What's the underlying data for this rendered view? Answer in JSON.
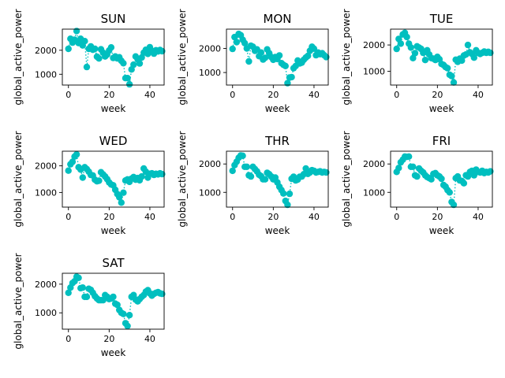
{
  "figure": {
    "marker_color": "#00BFBF"
  },
  "chart_data": [
    {
      "type": "scatter",
      "title": "SUN",
      "xlabel": "week",
      "ylabel": "global_active_power",
      "xlim": [
        -3,
        47
      ],
      "ylim": [
        550,
        2880
      ],
      "xticks": [
        0,
        20,
        40
      ],
      "yticks": [
        1000,
        2000
      ],
      "x": [
        0,
        1,
        2,
        3,
        4,
        5,
        6,
        7,
        8,
        9,
        10,
        11,
        12,
        13,
        14,
        15,
        16,
        17,
        18,
        19,
        20,
        21,
        22,
        23,
        24,
        25,
        26,
        27,
        28,
        29,
        30,
        31,
        32,
        33,
        34,
        35,
        36,
        37,
        38,
        39,
        40,
        41,
        42,
        43,
        44,
        45,
        46
      ],
      "y": [
        2060,
        2480,
        2320,
        2440,
        2800,
        2300,
        2480,
        2200,
        2380,
        1300,
        2060,
        2160,
        2020,
        2060,
        1730,
        1660,
        2040,
        1900,
        1740,
        1820,
        1990,
        2120,
        1680,
        1740,
        1660,
        1710,
        1560,
        1460,
        840,
        840,
        580,
        1200,
        1400,
        1740,
        1620,
        1450,
        1700,
        1900,
        2020,
        1850,
        2130,
        1980,
        1860,
        2000,
        1950,
        2010,
        1960
      ]
    },
    {
      "type": "scatter",
      "title": "MON",
      "xlabel": "week",
      "ylabel": "global_active_power",
      "xlim": [
        -3,
        47
      ],
      "ylim": [
        480,
        2800
      ],
      "xticks": [
        0,
        20,
        40
      ],
      "yticks": [
        1000,
        2000
      ],
      "x": [
        0,
        1,
        2,
        3,
        4,
        5,
        6,
        7,
        8,
        9,
        10,
        11,
        12,
        13,
        14,
        15,
        16,
        17,
        18,
        19,
        20,
        21,
        22,
        23,
        24,
        25,
        26,
        27,
        28,
        29,
        30,
        31,
        32,
        33,
        34,
        35,
        36,
        37,
        38,
        39,
        40,
        41,
        42,
        43,
        44,
        45,
        46
      ],
      "y": [
        1980,
        2470,
        2260,
        2600,
        2550,
        2360,
        2220,
        2000,
        1460,
        2110,
        2070,
        1900,
        1960,
        1680,
        1830,
        1540,
        1610,
        1960,
        1800,
        1640,
        1530,
        1640,
        1560,
        1710,
        1390,
        1320,
        1270,
        560,
        790,
        810,
        1180,
        1270,
        1500,
        1380,
        1410,
        1530,
        1620,
        1690,
        1900,
        2070,
        1990,
        1720,
        1830,
        1760,
        1800,
        1720,
        1640
      ]
    },
    {
      "type": "scatter",
      "title": "TUE",
      "xlabel": "week",
      "ylabel": "global_active_power",
      "xlim": [
        -3,
        47
      ],
      "ylim": [
        480,
        2600
      ],
      "xticks": [
        0,
        20,
        40
      ],
      "yticks": [
        1000,
        2000
      ],
      "x": [
        0,
        1,
        2,
        3,
        4,
        5,
        6,
        7,
        8,
        9,
        10,
        11,
        12,
        13,
        14,
        15,
        16,
        17,
        18,
        19,
        20,
        21,
        22,
        23,
        24,
        25,
        26,
        27,
        28,
        29,
        30,
        31,
        32,
        33,
        34,
        35,
        36,
        37,
        38,
        39,
        40,
        41,
        42,
        43,
        44,
        45,
        46
      ],
      "y": [
        1850,
        2230,
        2050,
        2400,
        2460,
        2300,
        2050,
        1900,
        1500,
        1690,
        1950,
        1900,
        1850,
        1700,
        1430,
        1800,
        1640,
        1500,
        1480,
        1430,
        1550,
        1460,
        1280,
        1240,
        1160,
        1120,
        870,
        820,
        580,
        1440,
        1360,
        1480,
        1410,
        1600,
        1640,
        2000,
        1720,
        1660,
        1520,
        1800,
        1700,
        1660,
        1700,
        1750,
        1700,
        1740,
        1700
      ]
    },
    {
      "type": "scatter",
      "title": "WED",
      "xlabel": "week",
      "ylabel": "global_active_power",
      "xlim": [
        -3,
        47
      ],
      "ylim": [
        450,
        2550
      ],
      "xticks": [
        0,
        20,
        40
      ],
      "yticks": [
        1000,
        2000
      ],
      "x": [
        0,
        1,
        2,
        3,
        4,
        5,
        6,
        7,
        8,
        9,
        10,
        11,
        12,
        13,
        14,
        15,
        16,
        17,
        18,
        19,
        20,
        21,
        22,
        23,
        24,
        25,
        26,
        27,
        28,
        29,
        30,
        31,
        32,
        33,
        34,
        35,
        36,
        37,
        38,
        39,
        40,
        41,
        42,
        43,
        44,
        45,
        46
      ],
      "y": [
        1820,
        2060,
        2150,
        2350,
        2430,
        1950,
        1860,
        1560,
        1950,
        1880,
        1780,
        1660,
        1640,
        1480,
        1420,
        1440,
        1760,
        1680,
        1600,
        1500,
        1380,
        1300,
        1270,
        1100,
        940,
        820,
        620,
        990,
        1450,
        1490,
        1400,
        1520,
        1580,
        1480,
        1540,
        1460,
        1600,
        1900,
        1780,
        1560,
        1700,
        1720,
        1660,
        1700,
        1680,
        1720,
        1690
      ]
    },
    {
      "type": "scatter",
      "title": "THR",
      "xlabel": "week",
      "ylabel": "global_active_power",
      "xlim": [
        -3,
        47
      ],
      "ylim": [
        480,
        2450
      ],
      "xticks": [
        0,
        20,
        40
      ],
      "yticks": [
        1000,
        2000
      ],
      "x": [
        0,
        1,
        2,
        3,
        4,
        5,
        6,
        7,
        8,
        9,
        10,
        11,
        12,
        13,
        14,
        15,
        16,
        17,
        18,
        19,
        20,
        21,
        22,
        23,
        24,
        25,
        26,
        27,
        28,
        29,
        30,
        31,
        32,
        33,
        34,
        35,
        36,
        37,
        38,
        39,
        40,
        41,
        42,
        43,
        44,
        45,
        46
      ],
      "y": [
        1760,
        1960,
        2080,
        2220,
        2300,
        2290,
        1900,
        1900,
        1600,
        1560,
        1900,
        1820,
        1740,
        1620,
        1570,
        1460,
        1460,
        1690,
        1640,
        1560,
        1460,
        1520,
        1350,
        1200,
        1080,
        960,
        700,
        560,
        950,
        1480,
        1550,
        1420,
        1450,
        1550,
        1560,
        1640,
        1840,
        1650,
        1700,
        1780,
        1760,
        1700,
        1720,
        1740,
        1700,
        1720,
        1700
      ]
    },
    {
      "type": "scatter",
      "title": "FRI",
      "xlabel": "week",
      "ylabel": "global_active_power",
      "xlim": [
        -3,
        47
      ],
      "ylim": [
        480,
        2450
      ],
      "xticks": [
        0,
        20,
        40
      ],
      "yticks": [
        1000,
        2000
      ],
      "x": [
        0,
        1,
        2,
        3,
        4,
        5,
        6,
        7,
        8,
        9,
        10,
        11,
        12,
        13,
        14,
        15,
        16,
        17,
        18,
        19,
        20,
        21,
        22,
        23,
        24,
        25,
        26,
        27,
        28,
        29,
        30,
        31,
        32,
        33,
        34,
        35,
        36,
        37,
        38,
        39,
        40,
        41,
        42,
        43,
        44,
        45,
        46
      ],
      "y": [
        1720,
        1860,
        2060,
        2150,
        2260,
        2250,
        2260,
        1900,
        1900,
        1600,
        1560,
        1840,
        1760,
        1700,
        1600,
        1540,
        1500,
        1460,
        1650,
        1680,
        1600,
        1560,
        1480,
        1260,
        1200,
        1080,
        1000,
        660,
        560,
        1500,
        1560,
        1420,
        1400,
        1320,
        1600,
        1560,
        1720,
        1760,
        1600,
        1800,
        1720,
        1700,
        1760,
        1680,
        1720,
        1700,
        1740
      ]
    },
    {
      "type": "scatter",
      "title": "SAT",
      "xlabel": "week",
      "ylabel": "global_active_power",
      "xlim": [
        -3,
        47
      ],
      "ylim": [
        430,
        2380
      ],
      "xticks": [
        0,
        20,
        40
      ],
      "yticks": [
        1000,
        2000
      ],
      "x": [
        0,
        1,
        2,
        3,
        4,
        5,
        6,
        7,
        8,
        9,
        10,
        11,
        12,
        13,
        14,
        15,
        16,
        17,
        18,
        19,
        20,
        21,
        22,
        23,
        24,
        25,
        26,
        27,
        28,
        29,
        30,
        31,
        32,
        33,
        34,
        35,
        36,
        37,
        38,
        39,
        40,
        41,
        42,
        43,
        44,
        45,
        46
      ],
      "y": [
        1700,
        1880,
        2040,
        2100,
        2260,
        2220,
        1860,
        1880,
        1560,
        1560,
        1840,
        1800,
        1700,
        1580,
        1500,
        1440,
        1440,
        1440,
        1620,
        1560,
        1480,
        1500,
        1560,
        1320,
        1280,
        1100,
        1000,
        960,
        640,
        540,
        920,
        1560,
        1620,
        1460,
        1400,
        1480,
        1560,
        1620,
        1740,
        1790,
        1680,
        1600,
        1660,
        1700,
        1720,
        1680,
        1660
      ]
    }
  ]
}
